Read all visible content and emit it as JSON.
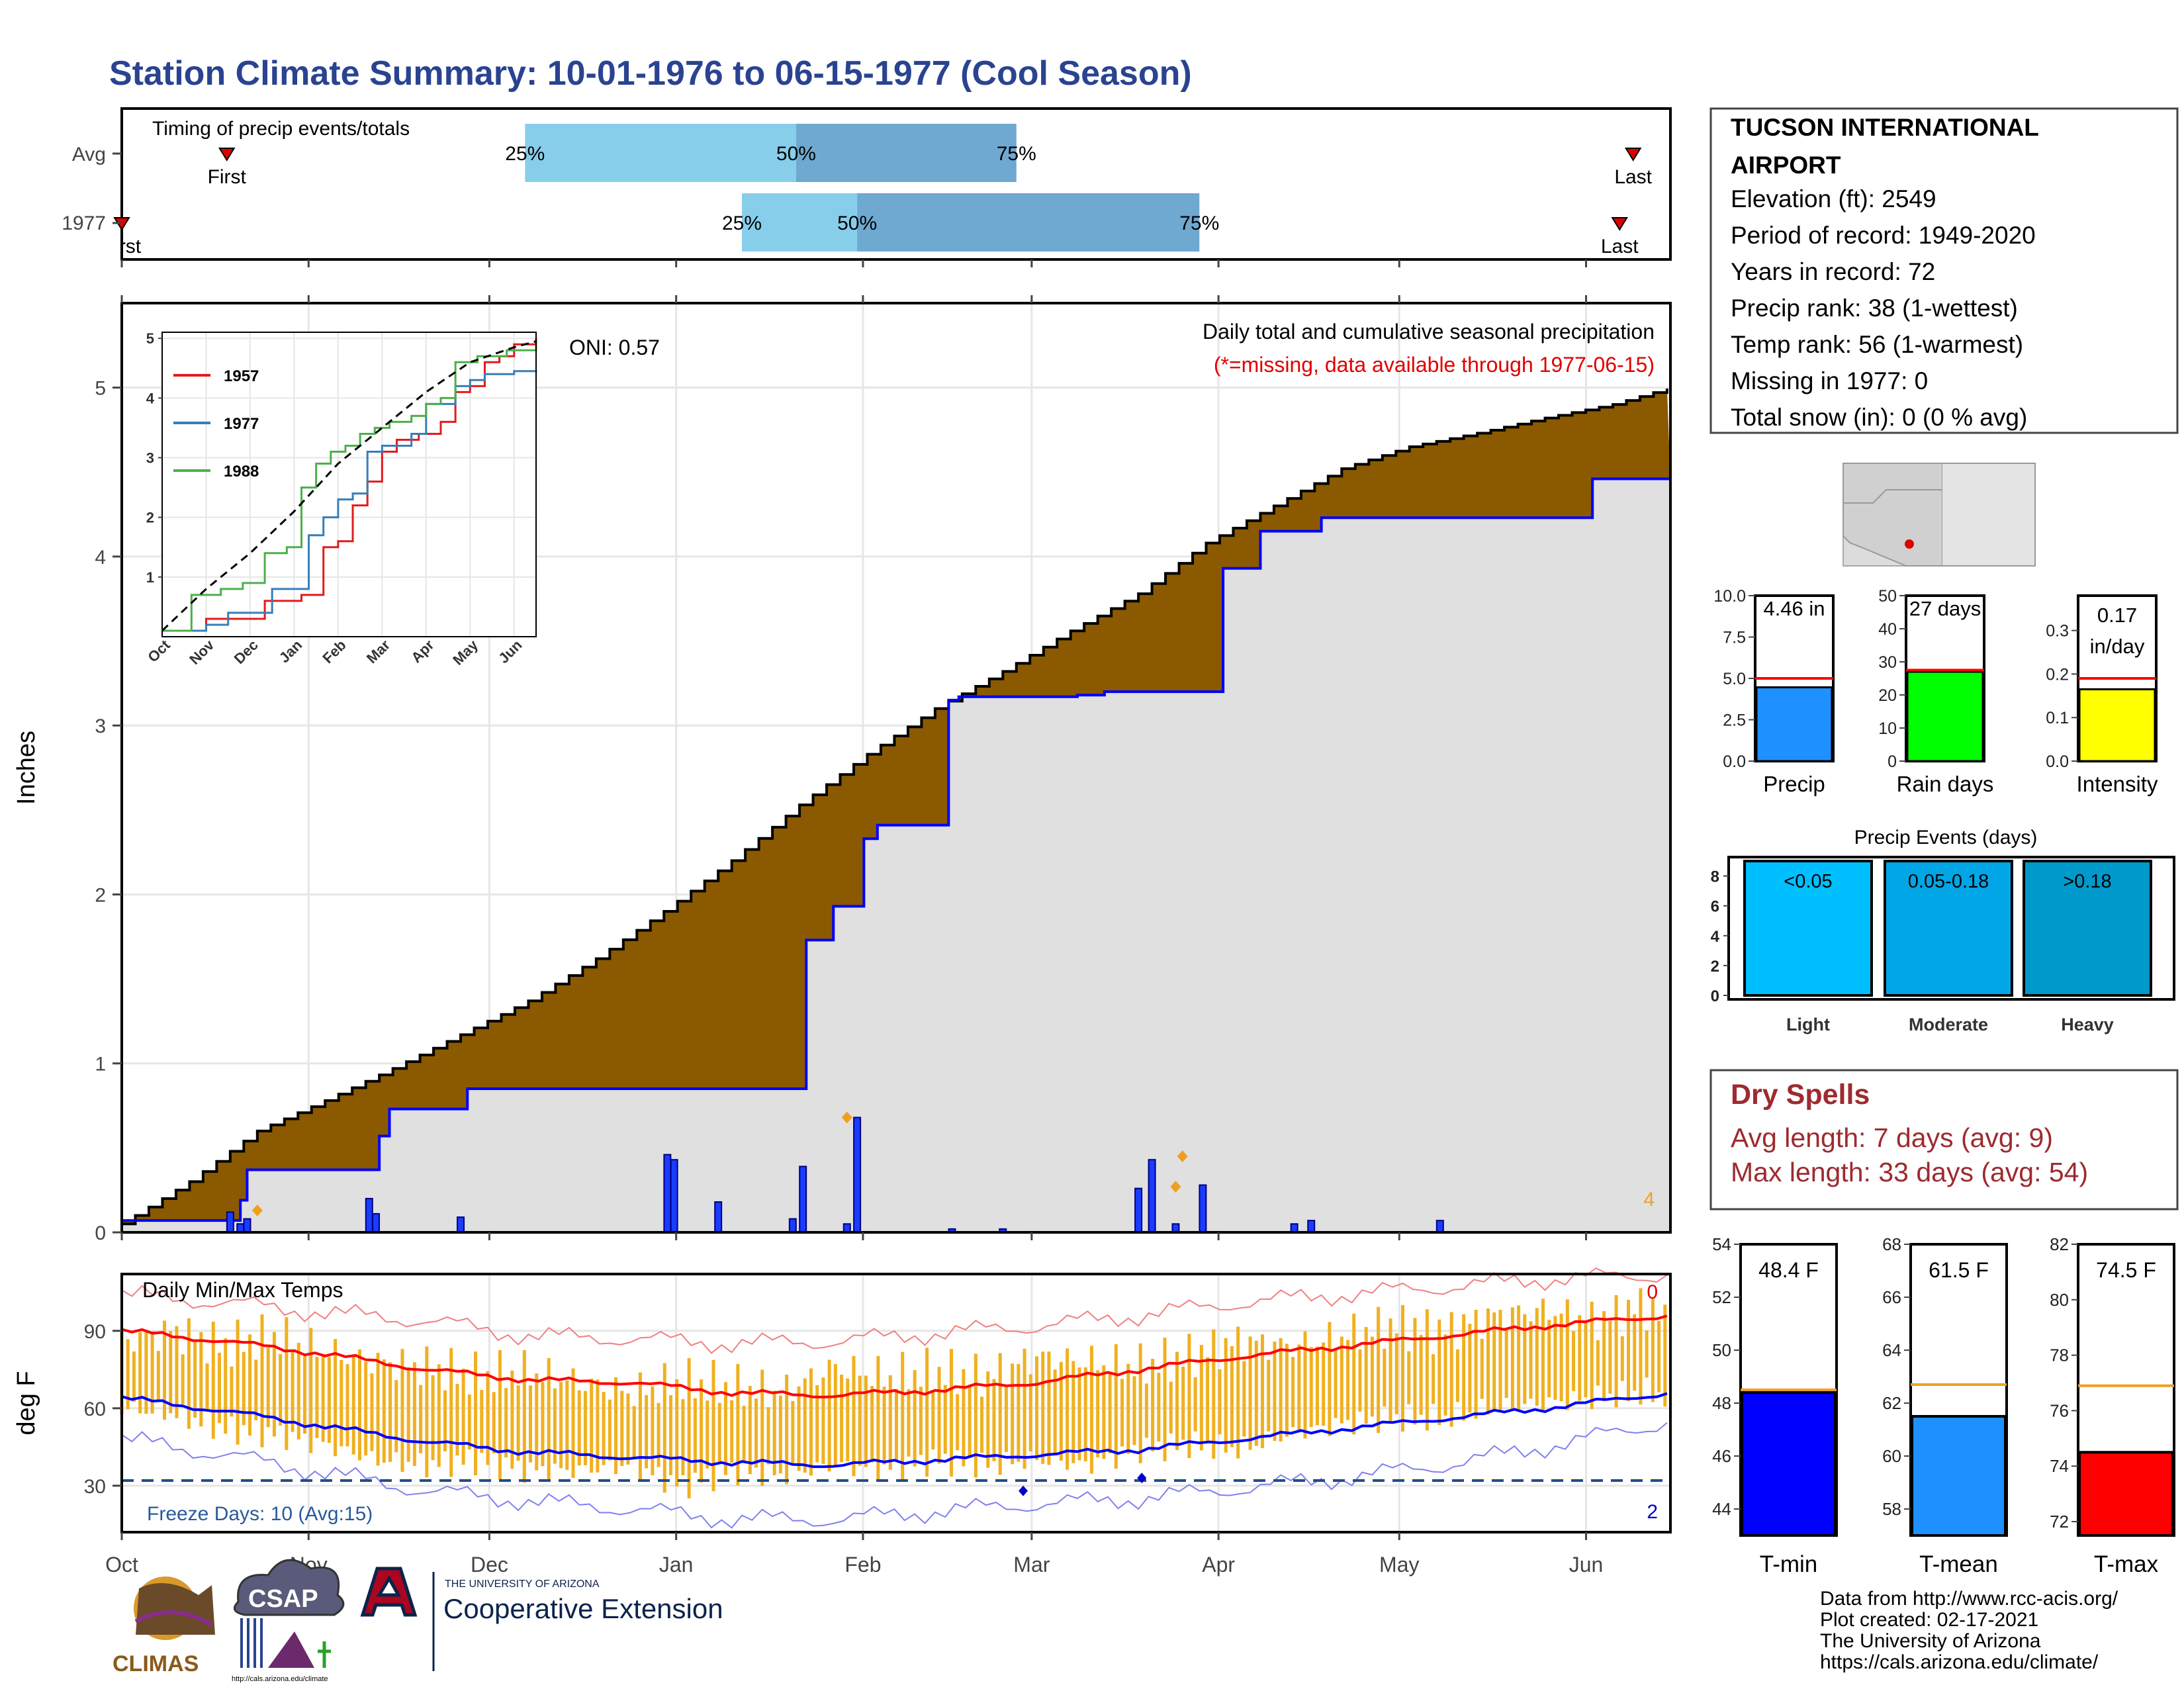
{
  "title": "Station Climate Summary: 10-01-1976 to 06-15-1977 (Cool Season)",
  "months": [
    "Oct",
    "Nov",
    "Dec",
    "Jan",
    "Feb",
    "Mar",
    "Apr",
    "May",
    "Jun"
  ],
  "timing": {
    "label": "Timing of precip events/totals",
    "rows": [
      {
        "name": "Avg",
        "first_day": 31,
        "p25_day": 119,
        "p50_day": 199,
        "p75_day": 264,
        "last_day": 446,
        "first_label": "First",
        "last_label": "Last",
        "p25_label": "25%",
        "p50_label": "50%",
        "p75_label": "75%"
      },
      {
        "name": "1977",
        "first_day": 0,
        "p25_day": 183,
        "p50_day": 217,
        "p75_day": 318,
        "last_day": 442,
        "first_label": "First",
        "last_label": "Last",
        "p25_label": "25%",
        "p50_label": "50%",
        "p75_label": "75%"
      }
    ]
  },
  "station": {
    "name_line1": "TUCSON INTERNATIONAL",
    "name_line2": "AIRPORT",
    "lines": [
      "Elevation (ft): 2549",
      "Period of record: 1949-2020",
      "Years in record: 72",
      "Precip rank: 38 (1-wettest)",
      "Temp rank: 56 (1-warmest)",
      "Missing in 1977: 0",
      "Total snow (in): 0 (0 % avg)"
    ]
  },
  "precip_main": {
    "ylabel": "Inches",
    "oni": "ONI: 0.57",
    "header": "Daily total and cumulative seasonal precipitation",
    "missing_note": "(*=missing, data available through 1977-06-15)",
    "corner_count": "4",
    "ylim": [
      0,
      5.5
    ],
    "yticks": [
      0,
      1,
      2,
      3,
      4,
      5
    ],
    "avg_cumulative": {
      "day": [
        0,
        20,
        40,
        60,
        80,
        100,
        120,
        140,
        160,
        180,
        200,
        220,
        240,
        260,
        280,
        300,
        320,
        340,
        360,
        380,
        400,
        420,
        440,
        457
      ],
      "value": [
        0.05,
        0.3,
        0.6,
        0.78,
        0.97,
        1.17,
        1.37,
        1.62,
        1.9,
        2.2,
        2.53,
        2.83,
        3.1,
        3.32,
        3.56,
        3.78,
        4.08,
        4.3,
        4.52,
        4.65,
        4.73,
        4.82,
        4.9,
        5.0
      ]
    },
    "observed_cumulative": {
      "day": [
        0,
        32,
        35,
        37,
        73,
        76,
        79,
        100,
        102,
        172,
        202,
        210,
        219,
        223,
        244,
        247,
        282,
        290,
        325,
        336,
        354,
        434,
        457
      ],
      "value": [
        0.07,
        0.07,
        0.19,
        0.37,
        0.37,
        0.57,
        0.73,
        0.73,
        0.85,
        0.85,
        1.73,
        1.93,
        2.33,
        2.41,
        3.15,
        3.17,
        3.18,
        3.2,
        3.93,
        4.15,
        4.23,
        4.46,
        4.46
      ]
    },
    "daily_precip": {
      "day": [
        32,
        35,
        37,
        73,
        75,
        100,
        161,
        163,
        176,
        198,
        201,
        214,
        217,
        245,
        260,
        300,
        304,
        319,
        311,
        346,
        351,
        389
      ],
      "value": [
        0.12,
        0.05,
        0.08,
        0.2,
        0.11,
        0.09,
        0.46,
        0.43,
        0.18,
        0.08,
        0.39,
        0.05,
        0.68,
        0.02,
        0.02,
        0.26,
        0.43,
        0.28,
        0.05,
        0.05,
        0.07,
        0.07
      ]
    },
    "daily_markers": {
      "day": [
        40,
        214,
        311,
        313
      ],
      "value": [
        0.13,
        0.68,
        0.27,
        0.45
      ]
    }
  },
  "inset": {
    "yticks": [
      1,
      2,
      3,
      4,
      5
    ],
    "xticks": [
      "Oct",
      "Nov",
      "Dec",
      "Jan",
      "Feb",
      "Mar",
      "Apr",
      "May",
      "Jun"
    ],
    "ylim": [
      0,
      5
    ],
    "series": [
      {
        "name": "1957",
        "color": "#e41a1c",
        "x": [
          0,
          30,
          60,
          70,
          85,
          95,
          110,
          120,
          130,
          140,
          150,
          160,
          175,
          190,
          200,
          210,
          220,
          230,
          240,
          255
        ],
        "y": [
          0.1,
          0.3,
          0.3,
          0.6,
          0.6,
          0.7,
          1.5,
          1.6,
          2.2,
          2.6,
          3.1,
          3.3,
          3.4,
          3.6,
          4.1,
          4.2,
          4.6,
          4.7,
          4.9,
          5.0
        ]
      },
      {
        "name": "1977",
        "color": "#377eb8",
        "x": [
          0,
          30,
          45,
          60,
          75,
          90,
          100,
          110,
          120,
          130,
          140,
          150,
          160,
          170,
          180,
          200,
          210,
          220,
          240,
          255
        ],
        "y": [
          0.1,
          0.2,
          0.4,
          0.4,
          0.8,
          0.8,
          1.7,
          2.0,
          2.3,
          2.4,
          3.1,
          3.2,
          3.2,
          3.4,
          3.9,
          4.2,
          4.3,
          4.4,
          4.45,
          4.46
        ]
      },
      {
        "name": "1988",
        "color": "#4daf4a",
        "x": [
          0,
          20,
          40,
          55,
          70,
          85,
          95,
          105,
          115,
          125,
          135,
          145,
          155,
          170,
          180,
          190,
          200,
          215,
          235,
          255
        ],
        "y": [
          0.1,
          0.7,
          0.8,
          0.9,
          1.4,
          1.5,
          2.5,
          2.9,
          3.1,
          3.2,
          3.4,
          3.5,
          3.6,
          3.7,
          3.9,
          4.0,
          4.6,
          4.7,
          4.8,
          4.9
        ]
      }
    ],
    "avg": {
      "x": [
        0,
        30,
        60,
        90,
        120,
        150,
        180,
        210,
        240,
        255
      ],
      "y": [
        0.1,
        0.8,
        1.4,
        2.1,
        2.9,
        3.5,
        4.1,
        4.6,
        4.85,
        4.95
      ]
    }
  },
  "temps": {
    "label": "Daily Min/Max Temps",
    "ylabel": "deg F",
    "yticks": [
      30,
      60,
      90
    ],
    "ylim": [
      12,
      112
    ],
    "freeze_label": "Freeze Days: 10 (Avg:15)",
    "freeze_line": 32,
    "top_count": "0",
    "bottom_count": "2",
    "avg_max": {
      "day": [
        0,
        30,
        60,
        90,
        120,
        150,
        180,
        210,
        240,
        270,
        300,
        330,
        360,
        390,
        420,
        457
      ],
      "value": [
        90,
        86,
        81,
        75,
        71,
        70,
        66,
        65,
        67,
        70,
        75,
        80,
        84,
        88,
        92,
        96
      ]
    },
    "avg_min": {
      "day": [
        0,
        30,
        60,
        90,
        120,
        150,
        180,
        210,
        240,
        270,
        300,
        330,
        360,
        390,
        420,
        457
      ],
      "value": [
        64,
        59,
        53,
        47,
        43,
        41,
        39,
        38,
        40,
        42,
        44,
        48,
        52,
        56,
        60,
        66
      ]
    },
    "record_max": {
      "day": [
        0,
        30,
        60,
        90,
        120,
        150,
        180,
        210,
        240,
        270,
        300,
        330,
        360,
        390,
        420,
        457
      ],
      "value": [
        104,
        101,
        97,
        94,
        88,
        87,
        85,
        86,
        89,
        92,
        96,
        101,
        104,
        107,
        110,
        112
      ]
    },
    "record_min": {
      "day": [
        0,
        30,
        60,
        90,
        120,
        150,
        180,
        210,
        240,
        270,
        300,
        330,
        360,
        390,
        420,
        457
      ],
      "value": [
        48,
        42,
        35,
        28,
        24,
        21,
        17,
        17,
        20,
        23,
        25,
        29,
        33,
        38,
        45,
        55
      ]
    },
    "range_samples": {
      "day": [
        0,
        15,
        30,
        45,
        60,
        75,
        90,
        105,
        120,
        135,
        150,
        165,
        180,
        195,
        210,
        225,
        240,
        255,
        270,
        285,
        300,
        315,
        330,
        345,
        360,
        375,
        390,
        405,
        420,
        435,
        450,
        457
      ],
      "max": [
        86,
        90,
        84,
        88,
        82,
        78,
        76,
        72,
        74,
        70,
        66,
        70,
        68,
        66,
        76,
        72,
        74,
        72,
        80,
        78,
        76,
        80,
        86,
        84,
        88,
        92,
        90,
        96,
        98,
        94,
        100,
        92
      ],
      "min": [
        60,
        58,
        52,
        50,
        46,
        40,
        38,
        40,
        36,
        36,
        38,
        30,
        36,
        34,
        38,
        36,
        40,
        38,
        40,
        38,
        44,
        46,
        44,
        50,
        54,
        56,
        56,
        60,
        62,
        64,
        66,
        64
      ]
    },
    "freeze_points": {
      "day": [
        266,
        301
      ],
      "value": [
        28,
        33
      ]
    }
  },
  "precip_bars": [
    {
      "label": "Precip",
      "value_label": "4.46 in",
      "value": 4.46,
      "avg": 5.0,
      "ymax": 10,
      "yticks": [
        "0.0",
        "2.5",
        "5.0",
        "7.5",
        "10.0"
      ],
      "tick_vals": [
        0,
        2.5,
        5,
        7.5,
        10
      ],
      "color": "#1e90ff"
    },
    {
      "label": "Rain days",
      "value_label": "27 days",
      "value": 27,
      "avg": 27.5,
      "ymax": 50,
      "yticks": [
        "0",
        "10",
        "20",
        "30",
        "40",
        "50"
      ],
      "tick_vals": [
        0,
        10,
        20,
        30,
        40,
        50
      ],
      "color": "#00ff00"
    },
    {
      "label": "Intensity",
      "value_label": "0.17",
      "value_label2": "in/day",
      "value": 0.165,
      "avg": 0.19,
      "ymax": 0.38,
      "yticks": [
        "0.0",
        "0.1",
        "0.2",
        "0.3"
      ],
      "tick_vals": [
        0,
        0.1,
        0.2,
        0.3
      ],
      "color": "#ffff00"
    }
  ],
  "events": {
    "title": "Precip Events (days)",
    "yticks": [
      0,
      2,
      4,
      6,
      8
    ],
    "ymax": 9,
    "bars": [
      {
        "name": "Light",
        "range": "<0.05",
        "value": 9,
        "color": "#00bfff"
      },
      {
        "name": "Moderate",
        "range": "0.05-0.18",
        "value": 9,
        "color": "#00a6e6"
      },
      {
        "name": "Heavy",
        "range": ">0.18",
        "value": 9,
        "color": "#0099cc"
      }
    ]
  },
  "dry_spells": {
    "title": "Dry Spells",
    "avg_length": "Avg length: 7 days (avg: 9)",
    "max_length": "Max length: 33 days (avg: 54)"
  },
  "temp_bars": [
    {
      "label": "T-min",
      "value_label": "48.4 F",
      "value": 48.4,
      "avg": 48.5,
      "ylim": [
        43,
        54
      ],
      "yticks": [
        44,
        46,
        48,
        50,
        52,
        54
      ],
      "color": "#0000ff"
    },
    {
      "label": "T-mean",
      "value_label": "61.5 F",
      "value": 61.5,
      "avg": 62.7,
      "ylim": [
        57,
        68
      ],
      "yticks": [
        58,
        60,
        62,
        64,
        66,
        68
      ],
      "color": "#1e90ff"
    },
    {
      "label": "T-max",
      "value_label": "74.5 F",
      "value": 74.5,
      "avg": 76.9,
      "ylim": [
        71.5,
        82
      ],
      "yticks": [
        72,
        74,
        76,
        78,
        80,
        82
      ],
      "color": "#ff0000"
    }
  ],
  "credits": {
    "lines": [
      "Data from http://www.rcc-acis.org/",
      "Plot created: 02-17-2021",
      "The University of Arizona",
      "https://cals.arizona.edu/climate/"
    ],
    "climas": "CLIMAS",
    "csap": "CSAP",
    "csap_url": "http://cals.arizona.edu/climate",
    "ua_small": "THE UNIVERSITY OF ARIZONA",
    "ua_big": "Cooperative Extension"
  },
  "colors": {
    "brown": "#8b5a00",
    "grey_fill": "#e0e0e0",
    "blue": "#0000ff",
    "orange": "#f0b020",
    "red": "#ff0000",
    "accent_title": "#2a4391"
  }
}
